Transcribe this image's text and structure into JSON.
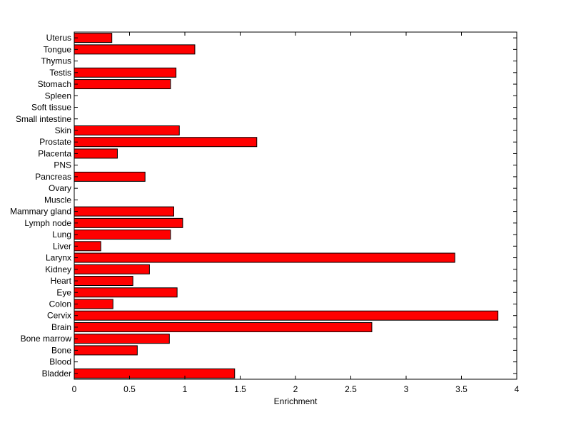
{
  "chart_data": {
    "type": "bar",
    "orientation": "horizontal",
    "categories": [
      "Bladder",
      "Blood",
      "Bone",
      "Bone marrow",
      "Brain",
      "Cervix",
      "Colon",
      "Eye",
      "Heart",
      "Kidney",
      "Larynx",
      "Liver",
      "Lung",
      "Lymph node",
      "Mammary gland",
      "Muscle",
      "Ovary",
      "Pancreas",
      "PNS",
      "Placenta",
      "Prostate",
      "Skin",
      "Small intestine",
      "Soft tissue",
      "Spleen",
      "Stomach",
      "Testis",
      "Thymus",
      "Tongue",
      "Uterus"
    ],
    "values": [
      1.45,
      0,
      0.57,
      0.86,
      2.69,
      3.83,
      0.35,
      0.93,
      0.53,
      0.68,
      3.44,
      0.24,
      0.87,
      0.98,
      0.9,
      0,
      0,
      0.64,
      0,
      0.39,
      1.65,
      0.95,
      0,
      0,
      0,
      0.87,
      0.92,
      0,
      1.09,
      0.34
    ],
    "xlabel": "Enrichment",
    "ylabel": "",
    "xlim": [
      0,
      4
    ],
    "xticks": [
      "0",
      "0.5",
      "1",
      "1.5",
      "2",
      "2.5",
      "3",
      "3.5",
      "4"
    ],
    "grid": false,
    "bar_color": "#ff0000"
  }
}
